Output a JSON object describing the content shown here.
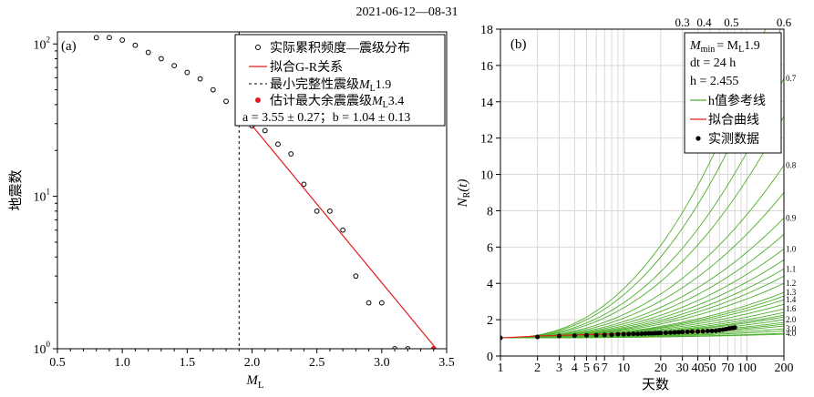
{
  "page_title": "2021-06-12—08-31",
  "chart_data": [
    {
      "type": "scatter",
      "panel_label": "(a)",
      "xlabel": "M",
      "xlabel_sub": "L",
      "ylabel": "地震数",
      "yscale": "log",
      "xlim": [
        0.5,
        3.5
      ],
      "ylim": [
        1,
        120
      ],
      "xticks": [
        "0.5",
        "1.0",
        "1.5",
        "2.0",
        "2.5",
        "3.0",
        "3.5"
      ],
      "yticks": [
        {
          "value": 1,
          "base": "10",
          "exp": "0"
        },
        {
          "value": 10,
          "base": "10",
          "exp": "1"
        },
        {
          "value": 100,
          "base": "10",
          "exp": "2"
        }
      ],
      "grid": false,
      "legend_position": "top-right",
      "series": [
        {
          "name": "实际累积频度—震级分布",
          "kind": "scatter-open",
          "color": "#000000",
          "points": [
            [
              0.8,
              110
            ],
            [
              0.9,
              110
            ],
            [
              1.0,
              106
            ],
            [
              1.1,
              98
            ],
            [
              1.2,
              88
            ],
            [
              1.3,
              80
            ],
            [
              1.4,
              72
            ],
            [
              1.5,
              65
            ],
            [
              1.6,
              59
            ],
            [
              1.7,
              50
            ],
            [
              1.8,
              42
            ],
            [
              1.9,
              37
            ],
            [
              2.0,
              29
            ],
            [
              2.1,
              27
            ],
            [
              2.2,
              22
            ],
            [
              2.3,
              19
            ],
            [
              2.4,
              12
            ],
            [
              2.5,
              8
            ],
            [
              2.6,
              8
            ],
            [
              2.7,
              6
            ],
            [
              2.8,
              3
            ],
            [
              2.9,
              2
            ],
            [
              3.0,
              2
            ],
            [
              3.1,
              1
            ],
            [
              3.2,
              1
            ]
          ]
        },
        {
          "name": "拟合G-R关系",
          "kind": "line",
          "color": "#e41a1c",
          "points": [
            [
              1.9,
              37
            ],
            [
              3.42,
              1
            ]
          ]
        },
        {
          "name": "最小完整性震级",
          "name_var": "M",
          "name_sub": "L",
          "name_value": "1.9",
          "kind": "vline-dashed",
          "color": "#000000",
          "x": 1.9
        },
        {
          "name": "估计最大余震震级",
          "name_var": "M",
          "name_sub": "L",
          "name_value": "3.4",
          "kind": "scatter-filled",
          "color": "#e41a1c",
          "points": [
            [
              3.4,
              1
            ]
          ]
        }
      ],
      "annotation": "a = 3.55 ± 0.27；b = 1.04 ± 0.13"
    },
    {
      "type": "line",
      "panel_label": "(b)",
      "xlabel": "天数",
      "ylabel": "N",
      "ylabel_sub": "R",
      "ylabel_arg": "(t)",
      "xscale": "log",
      "xlim": [
        1,
        200
      ],
      "ylim": [
        0,
        18
      ],
      "xticks": [
        "1",
        "2",
        "3",
        "4",
        "5",
        "6",
        "7",
        "10",
        "20",
        "30",
        "40",
        "50",
        "70",
        "100",
        "200"
      ],
      "yticks": [
        "0",
        "2",
        "4",
        "6",
        "8",
        "10",
        "12",
        "14",
        "16",
        "18"
      ],
      "top_ticks": [
        {
          "x": 30,
          "label": "0.3"
        },
        {
          "x": 45,
          "label": "0.4"
        },
        {
          "x": 75,
          "label": "0.5"
        },
        {
          "x": 200,
          "label": "0.6"
        }
      ],
      "grid": true,
      "legend_position": "top-right",
      "params": {
        "mmin_var": "M",
        "mmin_sub": "min",
        "mmin_eq": "= M",
        "mmin_eq_sub": "L",
        "mmin_val": "1.9",
        "dt": "dt = 24 h",
        "h": "h = 2.455"
      },
      "h_curves": [
        {
          "label": "0.7",
          "value_at_200": 15.3
        },
        {
          "label": "0.8",
          "value_at_200": 10.5
        },
        {
          "label": "0.9",
          "value_at_200": 7.6
        },
        {
          "label": "1.0",
          "value_at_200": 5.9
        },
        {
          "label": "1.1",
          "value_at_200": 4.8
        },
        {
          "label": "1.2",
          "value_at_200": 4.0
        },
        {
          "label": "1.3",
          "value_at_200": 3.5
        },
        {
          "label": "1.4",
          "value_at_200": 3.1
        },
        {
          "label": "1.6",
          "value_at_200": 2.6
        },
        {
          "label": "2.0",
          "value_at_200": 2.0
        },
        {
          "label": "3.0",
          "value_at_200": 1.5
        },
        {
          "label": "4.0",
          "value_at_200": 1.25
        }
      ],
      "h_curves_unlabeled": [
        21.0,
        18.5,
        13.2,
        9.0,
        6.7,
        5.3,
        4.4,
        3.3,
        2.85,
        2.4,
        2.25,
        2.15,
        1.85,
        1.75,
        1.65,
        1.38,
        1.2
      ],
      "series": [
        {
          "name": "h值参考线",
          "kind": "line",
          "color": "#4daf2a"
        },
        {
          "name": "拟合曲线",
          "kind": "line",
          "color": "#e41a1c",
          "points": [
            [
              1,
              1.0
            ],
            [
              2,
              1.1
            ],
            [
              5,
              1.18
            ],
            [
              10,
              1.24
            ],
            [
              20,
              1.3
            ],
            [
              40,
              1.36
            ],
            [
              80,
              1.45
            ]
          ]
        },
        {
          "name": "实测数据",
          "kind": "scatter-filled",
          "color": "#000000",
          "points": [
            [
              1,
              1.0
            ],
            [
              2,
              1.05
            ],
            [
              3,
              1.1
            ],
            [
              4,
              1.12
            ],
            [
              5,
              1.14
            ],
            [
              6,
              1.15
            ],
            [
              7,
              1.16
            ],
            [
              8,
              1.17
            ],
            [
              9,
              1.2
            ],
            [
              10,
              1.2
            ],
            [
              11,
              1.21
            ],
            [
              12,
              1.22
            ],
            [
              13,
              1.22
            ],
            [
              14,
              1.23
            ],
            [
              15,
              1.24
            ],
            [
              16,
              1.25
            ],
            [
              17,
              1.25
            ],
            [
              18,
              1.26
            ],
            [
              19,
              1.26
            ],
            [
              20,
              1.27
            ],
            [
              22,
              1.28
            ],
            [
              24,
              1.29
            ],
            [
              26,
              1.3
            ],
            [
              28,
              1.31
            ],
            [
              30,
              1.32
            ],
            [
              33,
              1.33
            ],
            [
              36,
              1.34
            ],
            [
              40,
              1.35
            ],
            [
              44,
              1.36
            ],
            [
              48,
              1.38
            ],
            [
              52,
              1.38
            ],
            [
              56,
              1.39
            ],
            [
              60,
              1.42
            ],
            [
              64,
              1.45
            ],
            [
              68,
              1.48
            ],
            [
              72,
              1.52
            ],
            [
              76,
              1.55
            ],
            [
              80,
              1.57
            ]
          ]
        }
      ]
    }
  ]
}
